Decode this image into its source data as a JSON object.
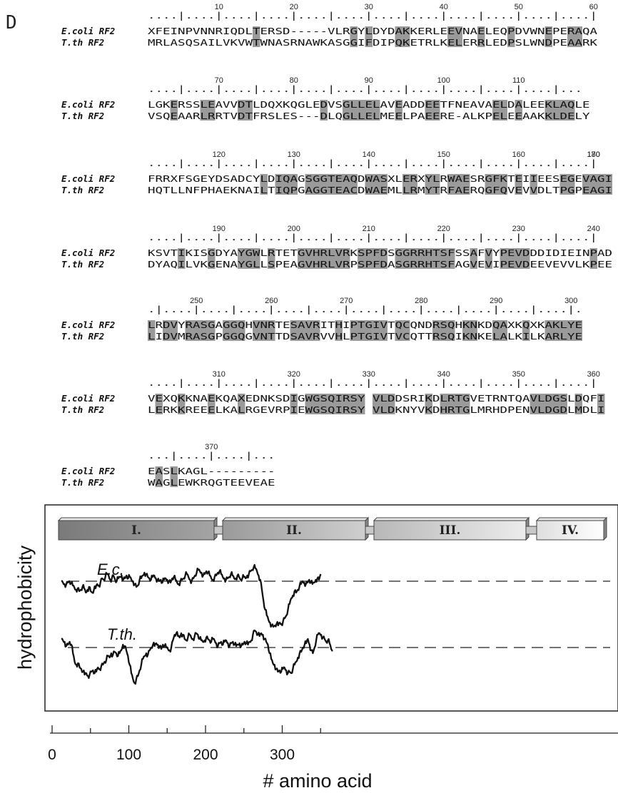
{
  "panel_label": "D",
  "alignment": {
    "label_a": "E.coli RF2",
    "label_b": "T.th RF2",
    "blocks": [
      {
        "ticks": [
          10,
          20,
          30,
          40,
          50,
          60
        ],
        "ruler": "....|....|....|....|....|....|....|....|....|....|....|....|",
        "seq_a": "XFEINPVNNRIQDLTERSD-----VLRGYLDYDAKKERLEEVNAELEQPDVWNEPERAQA",
        "seq_b": "MRLASQSAILVKVWTWNASRNAWKASGGIFDIPQKETRLKELERRLEDPSLWNDPEAARK",
        "shade": [
          14,
          27,
          29,
          33,
          34,
          40,
          41,
          44,
          48,
          53,
          56,
          57
        ]
      },
      {
        "ticks": [
          70,
          80,
          90,
          100,
          110
        ],
        "ruler": "....|....|....|....|....|....|....|....|....|....|....|...",
        "seq_a": "LGKERSSLEAVVDTLDQXKQGLEDVSGLLELAVEADDEETFNEAVAELDALEEKLAQLE",
        "seq_b": "VSQEAARLRRTVDTFRSLES---DLQGLLELMEELPAEERE-ALKPELEEAAKKLDELY",
        "shade": [
          3,
          7,
          8,
          12,
          13,
          23,
          26,
          27,
          28,
          29,
          30,
          33,
          37,
          38,
          46,
          47,
          49,
          53,
          54,
          55,
          56
        ]
      },
      {
        "ticks": [
          120,
          130,
          140,
          150,
          160,
          170,
          180
        ],
        "ruler": "....|....|....|....|....|....|....|....|....|....|....|....|",
        "seq_a": "FRRXFSGEYDSADCYLDIQAGSGGTEAQDWASXLERXYLRWAESRGFKTEIIEESEGEVAGI",
        "seq_b": "HQTLLNFPHAEKNAILTIQPGAGGTEACDWAEMLLRMYTRFAERQGFQVEVVDLTPGPEAGI",
        "shade": [
          15,
          17,
          18,
          19,
          21,
          22,
          23,
          24,
          25,
          26,
          27,
          29,
          30,
          31,
          34,
          35,
          37,
          38,
          40,
          41,
          42,
          45,
          46,
          47,
          49,
          51,
          55,
          56,
          58,
          59,
          60,
          61
        ]
      },
      {
        "ticks": [
          190,
          200,
          210,
          220,
          230,
          240
        ],
        "ruler": "....|....|....|....|....|....|....|....|....|....|....|....|",
        "seq_a": "KSVTIKISGDYAYGWLRTETGVHRLVRKSPFDSGGRRHTSFSSAFVYPEVDDDIDIEINPAD",
        "seq_b": "DYAQILVKGENAYGLLSPEAGVHRLVRPSPFDASGRRHTSFAGVEVIPEVDEEVEVVLKPEE",
        "shade": [
          4,
          8,
          12,
          13,
          14,
          16,
          20,
          21,
          22,
          23,
          24,
          25,
          26,
          28,
          29,
          30,
          31,
          33,
          34,
          35,
          36,
          37,
          38,
          39,
          40,
          43,
          45,
          47,
          48,
          49,
          50,
          59
        ]
      },
      {
        "ticks": [
          250,
          260,
          270,
          280,
          290,
          300
        ],
        "ruler": ".|....|....|....|....|....|....|....|....|....|....|....|.",
        "seq_a": "LRDVYRASGAGGQHVNRTESAVRITHIPTGIVTQCQNDRSQHKNKDQAXKQXKAKLYE",
        "seq_b": "LIDVMRASGPGGQGVNTTDSAVRVVHLPTGIVTVCQTTRSQIKNKELALKILKARLYE",
        "shade": [
          0,
          2,
          3,
          5,
          6,
          7,
          8,
          10,
          11,
          12,
          14,
          15,
          16,
          19,
          20,
          21,
          22,
          25,
          27,
          28,
          29,
          30,
          31,
          33,
          34,
          38,
          39,
          40,
          42,
          43,
          46,
          47,
          50,
          53,
          54,
          55,
          56,
          57
        ]
      },
      {
        "ticks": [
          310,
          320,
          330,
          340,
          350,
          360
        ],
        "ruler": "....|....|....|....|....|....|....|....|....|....|....|....|",
        "seq_a": "VEXQKKNAEKQAXEDNKSDIGWGSQIRSY VLDDSRIKDLRTGVETRNTQAVLDGSLDQFI",
        "seq_b": "LERKKREEELKALRGEVRPIEWGSQIRSY VLDKNYVKDHRTGLMRHDPENVLDGDLMDLI",
        "shade": [
          1,
          4,
          8,
          12,
          19,
          21,
          22,
          23,
          24,
          25,
          26,
          27,
          28,
          30,
          31,
          32,
          37,
          39,
          40,
          41,
          42,
          51,
          52,
          53,
          54,
          55,
          57,
          60,
          61
        ]
      },
      {
        "ticks": [
          370
        ],
        "ruler": "...|....|....|...",
        "seq_a": "EASLKAGL---------",
        "seq_b": "WAGLEWKRQGTEEVEAE",
        "shade": [
          1,
          3
        ]
      }
    ]
  },
  "chart_data": {
    "type": "line",
    "xlabel": "# amino acid",
    "ylabel": "hydrophobicity",
    "x_ticks": [
      0,
      100,
      200,
      300
    ],
    "xlim": [
      -5,
      370
    ],
    "domains": [
      {
        "label": "I.",
        "start": 10,
        "end": 125
      },
      {
        "label": "II.",
        "start": 135,
        "end": 250
      },
      {
        "label": "III.",
        "start": 260,
        "end": 378
      },
      {
        "label": "IV.",
        "start": 388,
        "end": 455
      }
    ],
    "series": [
      {
        "name": "E.c.",
        "x_start": 12,
        "x_end": 350,
        "reference_level": 0,
        "values": [
          0,
          -0.05,
          -0.1,
          -0.12,
          -0.05,
          0,
          -0.08,
          -0.15,
          -0.22,
          -0.3,
          -0.25,
          -0.35,
          -0.3,
          -0.2,
          -0.25,
          -0.4,
          -0.3,
          -0.2,
          -0.35,
          -0.4,
          -0.3,
          -0.25,
          -0.1,
          -0.15,
          -0.05,
          0.1,
          0.05,
          0.15,
          0.25,
          0.2,
          0.05,
          0.1,
          0.2,
          0.05,
          0,
          0.1,
          0.15,
          0.2,
          0.05,
          0.1,
          0.2,
          0.1,
          0.15,
          0.05,
          0,
          -0.1,
          -0.2,
          -0.15,
          0.05,
          0.1,
          0.2,
          0.3,
          0.25,
          0.15,
          0.1,
          0.05,
          0.15,
          0.2,
          0.1,
          0.05,
          0,
          0.05,
          -0.05,
          0.05,
          0.1,
          0.05,
          0,
          -0.05,
          0.1,
          0.15,
          0.05,
          -0.05,
          -0.1,
          0,
          0.05,
          0.1,
          0.2,
          0.25,
          0.15,
          0.05,
          0,
          0.1,
          0.2,
          0.3,
          0.4,
          0.35,
          0.3,
          0.2,
          0.25,
          0.35,
          0.3,
          0.2,
          0.1,
          0.05,
          0.15,
          0.2,
          0.3,
          0.35,
          0.25,
          0.15,
          0.1,
          0.05,
          0.1,
          0.15,
          0.25,
          0.2,
          0.1,
          0.1,
          0.2,
          0.15,
          0.05,
          0.1,
          0.15,
          0.1,
          0.2,
          0.25,
          0.35,
          0.4,
          0.5,
          0.45,
          0.35,
          0.2,
          0.05,
          -0.3,
          -0.7,
          -1.0,
          -1.2,
          -1.35,
          -1.45,
          -1.55,
          -1.6,
          -1.55,
          -1.5,
          -1.55,
          -1.45,
          -1.5,
          -1.4,
          -1.3,
          -1.2,
          -1.0,
          -0.8,
          -0.6,
          -0.5,
          -0.35,
          -0.4,
          -0.3,
          -0.2,
          -0.1,
          0,
          -0.05,
          -0.1,
          -0.05,
          0.05,
          -0.05,
          -0.1,
          -0.05,
          0.05,
          0.1,
          0.05,
          0.25
        ]
      },
      {
        "name": "T.th.",
        "x_start": 12,
        "x_end": 366,
        "reference_level": 0,
        "values": [
          0.3,
          0.25,
          0.2,
          0.05,
          0.1,
          0.2,
          0.1,
          -0.2,
          -0.5,
          -0.6,
          -0.55,
          -0.7,
          -0.75,
          -0.85,
          -0.95,
          -0.9,
          -1.0,
          -0.95,
          -0.85,
          -0.8,
          -0.9,
          -0.85,
          -0.7,
          -0.75,
          -0.65,
          -0.6,
          -0.5,
          -0.45,
          -0.3,
          -0.35,
          -0.2,
          -0.25,
          -0.15,
          -0.2,
          -0.3,
          -0.2,
          -0.1,
          0.1,
          0.05,
          -0.1,
          -0.3,
          -0.6,
          -0.9,
          -1.1,
          -1.25,
          -1.1,
          -1.0,
          -0.8,
          -0.6,
          -0.4,
          -0.3,
          -0.2,
          -0.25,
          -0.1,
          0,
          0.1,
          0.05,
          0.15,
          0.1,
          0.05,
          -0.05,
          0.1,
          0.05,
          0,
          -0.05,
          -0.1,
          0,
          0.25,
          0.45,
          0.5,
          0.4,
          0.35,
          0.5,
          0.45,
          0.3,
          0.25,
          0.35,
          0.45,
          0.35,
          0.3,
          0.4,
          0.5,
          0.45,
          0.3,
          0.25,
          0.2,
          0.25,
          0.35,
          0.3,
          0.25,
          0.2,
          0.3,
          0.25,
          0.15,
          0.05,
          0.15,
          0.2,
          0.1,
          0.2,
          0.25,
          0.15,
          0.05,
          0.15,
          0.2,
          0.1,
          0.05,
          0.1,
          0.15,
          0.05,
          0.1,
          0.2,
          0.15,
          0.1,
          0.2,
          0.25,
          0.45,
          0.6,
          0.55,
          0.45,
          0.4,
          0.5,
          0.45,
          0.3,
          0.2,
          0.1,
          -0.2,
          -0.4,
          -0.55,
          -0.6,
          -0.75,
          -0.85,
          -0.8,
          -0.85,
          -0.75,
          -0.7,
          -0.8,
          -0.9,
          -0.85,
          -0.9,
          -0.75,
          -0.6,
          -0.5,
          -0.35,
          -0.2,
          -0.15,
          0,
          0.1,
          0.15,
          0.3,
          0.1,
          -0.1,
          -0.2,
          0,
          0.25,
          0.45,
          0.5,
          0.45,
          0.35,
          0.3,
          0.2,
          0.25,
          0.15,
          -0.05,
          -0.1
        ]
      }
    ]
  }
}
